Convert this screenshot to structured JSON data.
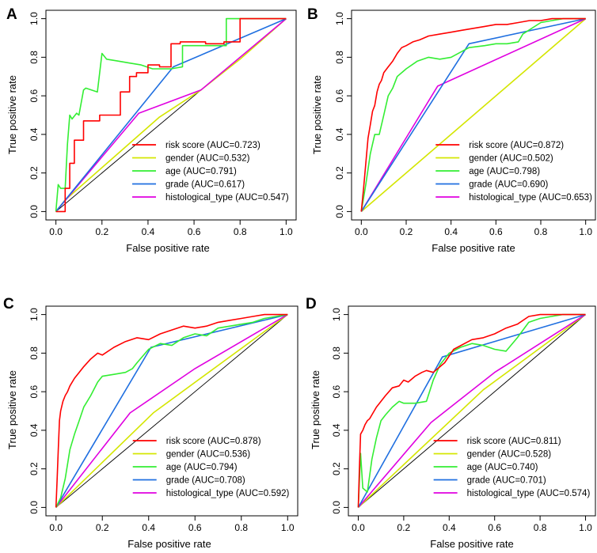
{
  "figure": {
    "axis_color": "#000000",
    "diagonal_color": "#000000"
  },
  "chart_data": [
    {
      "panel_label": "A",
      "type": "line",
      "xlabel": "False positive rate",
      "ylabel": "True positive rate",
      "xlim": [
        0,
        1
      ],
      "ylim": [
        0,
        1
      ],
      "ticks": [
        "0.0",
        "0.2",
        "0.4",
        "0.6",
        "0.8",
        "1.0"
      ],
      "legend_position": "bottom-right",
      "series": [
        {
          "name": "risk score (AUC=0.723)",
          "color": "#ff0000",
          "x": [
            0,
            0.04,
            0.04,
            0.06,
            0.06,
            0.08,
            0.08,
            0.12,
            0.12,
            0.19,
            0.19,
            0.28,
            0.28,
            0.32,
            0.32,
            0.35,
            0.35,
            0.4,
            0.4,
            0.45,
            0.45,
            0.5,
            0.5,
            0.54,
            0.54,
            0.6,
            0.6,
            0.65,
            0.65,
            0.73,
            0.73,
            0.8,
            0.8,
            0.85,
            0.85,
            0.95,
            1.0
          ],
          "y": [
            0,
            0,
            0.12,
            0.12,
            0.25,
            0.25,
            0.37,
            0.37,
            0.47,
            0.47,
            0.5,
            0.5,
            0.62,
            0.62,
            0.7,
            0.7,
            0.72,
            0.72,
            0.76,
            0.76,
            0.75,
            0.75,
            0.87,
            0.87,
            0.88,
            0.88,
            0.88,
            0.88,
            0.87,
            0.87,
            0.88,
            0.88,
            1.0,
            1.0,
            1.0,
            1.0,
            1.0
          ]
        },
        {
          "name": "gender (AUC=0.532)",
          "color": "#d4e600",
          "x": [
            0,
            0.04,
            0.25,
            0.45,
            0.63,
            0.8,
            1.0
          ],
          "y": [
            0,
            0.06,
            0.28,
            0.49,
            0.63,
            0.79,
            1.0
          ]
        },
        {
          "name": "age (AUC=0.791)",
          "color": "#33ee33",
          "x": [
            0,
            0.01,
            0.02,
            0.04,
            0.05,
            0.06,
            0.07,
            0.09,
            0.1,
            0.12,
            0.13,
            0.18,
            0.2,
            0.22,
            0.27,
            0.32,
            0.37,
            0.42,
            0.5,
            0.55,
            0.55,
            0.62,
            0.7,
            0.74,
            0.74,
            0.8,
            0.85,
            0.9,
            1.0
          ],
          "y": [
            0,
            0.14,
            0.12,
            0.12,
            0.35,
            0.5,
            0.48,
            0.51,
            0.5,
            0.63,
            0.64,
            0.62,
            0.82,
            0.79,
            0.78,
            0.77,
            0.76,
            0.74,
            0.74,
            0.75,
            0.86,
            0.86,
            0.86,
            0.86,
            1.0,
            1.0,
            1.0,
            1.0,
            1.0
          ]
        },
        {
          "name": "grade (AUC=0.617)",
          "color": "#1f6fe0",
          "x": [
            0,
            0.51,
            1.0
          ],
          "y": [
            0,
            0.75,
            1.0
          ]
        },
        {
          "name": "histological_type (AUC=0.547)",
          "color": "#e000e0",
          "x": [
            0,
            0.36,
            0.63,
            1.0
          ],
          "y": [
            0,
            0.51,
            0.63,
            1.0
          ]
        }
      ]
    },
    {
      "panel_label": "B",
      "type": "line",
      "xlabel": "False positive rate",
      "ylabel": "True positive rate",
      "xlim": [
        0,
        1
      ],
      "ylim": [
        0,
        1
      ],
      "ticks": [
        "0.0",
        "0.2",
        "0.4",
        "0.6",
        "0.8",
        "1.0"
      ],
      "legend_position": "bottom-right",
      "series": [
        {
          "name": "risk score (AUC=0.872)",
          "color": "#ff0000",
          "x": [
            0,
            0.01,
            0.02,
            0.03,
            0.04,
            0.05,
            0.06,
            0.07,
            0.08,
            0.09,
            0.1,
            0.12,
            0.14,
            0.16,
            0.18,
            0.2,
            0.23,
            0.26,
            0.3,
            0.35,
            0.4,
            0.45,
            0.5,
            0.55,
            0.6,
            0.65,
            0.7,
            0.75,
            0.8,
            0.85,
            0.9,
            0.95,
            1.0
          ],
          "y": [
            0,
            0.12,
            0.25,
            0.38,
            0.45,
            0.52,
            0.55,
            0.62,
            0.66,
            0.68,
            0.72,
            0.75,
            0.78,
            0.82,
            0.85,
            0.86,
            0.88,
            0.89,
            0.91,
            0.92,
            0.93,
            0.94,
            0.95,
            0.96,
            0.97,
            0.97,
            0.98,
            0.99,
            0.99,
            1.0,
            1.0,
            1.0,
            1.0
          ]
        },
        {
          "name": "gender (AUC=0.502)",
          "color": "#d4e600",
          "x": [
            0,
            1.0
          ],
          "y": [
            0,
            1.0
          ]
        },
        {
          "name": "age (AUC=0.798)",
          "color": "#33ee33",
          "x": [
            0,
            0.02,
            0.04,
            0.06,
            0.08,
            0.1,
            0.12,
            0.14,
            0.16,
            0.2,
            0.25,
            0.3,
            0.35,
            0.4,
            0.48,
            0.55,
            0.6,
            0.65,
            0.7,
            0.72,
            0.8,
            0.85,
            0.9,
            1.0
          ],
          "y": [
            0,
            0.14,
            0.3,
            0.4,
            0.4,
            0.5,
            0.6,
            0.64,
            0.7,
            0.74,
            0.78,
            0.8,
            0.79,
            0.8,
            0.85,
            0.86,
            0.87,
            0.87,
            0.88,
            0.92,
            0.98,
            0.99,
            1.0,
            1.0
          ]
        },
        {
          "name": "grade (AUC=0.690)",
          "color": "#1f6fe0",
          "x": [
            0,
            0.48,
            1.0
          ],
          "y": [
            0,
            0.87,
            1.0
          ]
        },
        {
          "name": "histological_type (AUC=0.653)",
          "color": "#e000e0",
          "x": [
            0,
            0.34,
            1.0
          ],
          "y": [
            0,
            0.65,
            1.0
          ]
        }
      ]
    },
    {
      "panel_label": "C",
      "type": "line",
      "xlabel": "False positive rate",
      "ylabel": "True positive rate",
      "xlim": [
        0,
        1
      ],
      "ylim": [
        0,
        1
      ],
      "ticks": [
        "0.0",
        "0.2",
        "0.4",
        "0.6",
        "0.8",
        "1.0"
      ],
      "legend_position": "bottom-right",
      "series": [
        {
          "name": "risk score (AUC=0.878)",
          "color": "#ff0000",
          "x": [
            0,
            0.005,
            0.01,
            0.015,
            0.02,
            0.03,
            0.04,
            0.05,
            0.06,
            0.08,
            0.1,
            0.12,
            0.15,
            0.18,
            0.2,
            0.25,
            0.3,
            0.35,
            0.4,
            0.45,
            0.5,
            0.55,
            0.6,
            0.65,
            0.7,
            0.75,
            0.8,
            0.85,
            0.9,
            0.95,
            1.0
          ],
          "y": [
            0,
            0.15,
            0.3,
            0.45,
            0.5,
            0.55,
            0.58,
            0.6,
            0.63,
            0.67,
            0.7,
            0.73,
            0.77,
            0.8,
            0.79,
            0.83,
            0.86,
            0.88,
            0.87,
            0.9,
            0.92,
            0.94,
            0.93,
            0.94,
            0.96,
            0.97,
            0.98,
            0.99,
            1.0,
            1.0,
            1.0
          ]
        },
        {
          "name": "gender (AUC=0.536)",
          "color": "#d4e600",
          "x": [
            0,
            0.42,
            1.0
          ],
          "y": [
            0,
            0.49,
            1.0
          ]
        },
        {
          "name": "age (AUC=0.794)",
          "color": "#33ee33",
          "x": [
            0,
            0.02,
            0.04,
            0.06,
            0.08,
            0.1,
            0.12,
            0.15,
            0.18,
            0.2,
            0.25,
            0.3,
            0.33,
            0.35,
            0.4,
            0.45,
            0.5,
            0.55,
            0.6,
            0.65,
            0.7,
            0.8,
            0.85,
            0.9,
            0.95,
            1.0
          ],
          "y": [
            0,
            0.05,
            0.15,
            0.3,
            0.38,
            0.45,
            0.52,
            0.58,
            0.65,
            0.68,
            0.69,
            0.7,
            0.72,
            0.75,
            0.82,
            0.85,
            0.84,
            0.88,
            0.9,
            0.89,
            0.93,
            0.95,
            0.96,
            0.98,
            0.99,
            1.0
          ]
        },
        {
          "name": "grade (AUC=0.708)",
          "color": "#1f6fe0",
          "x": [
            0,
            0.41,
            1.0
          ],
          "y": [
            0,
            0.83,
            1.0
          ]
        },
        {
          "name": "histological_type (AUC=0.592)",
          "color": "#e000e0",
          "x": [
            0,
            0.32,
            0.6,
            1.0
          ],
          "y": [
            0,
            0.49,
            0.72,
            1.0
          ]
        }
      ]
    },
    {
      "panel_label": "D",
      "type": "line",
      "xlabel": "False positive rate",
      "ylabel": "True positive rate",
      "xlim": [
        0,
        1
      ],
      "ylim": [
        0,
        1
      ],
      "ticks": [
        "0.0",
        "0.2",
        "0.4",
        "0.6",
        "0.8",
        "1.0"
      ],
      "legend_position": "bottom-right",
      "series": [
        {
          "name": "risk score (AUC=0.811)",
          "color": "#ff0000",
          "x": [
            0,
            0.005,
            0.01,
            0.02,
            0.03,
            0.04,
            0.05,
            0.06,
            0.08,
            0.1,
            0.12,
            0.15,
            0.18,
            0.2,
            0.22,
            0.25,
            0.28,
            0.3,
            0.33,
            0.35,
            0.38,
            0.42,
            0.5,
            0.55,
            0.6,
            0.65,
            0.7,
            0.75,
            0.8,
            0.85,
            0.9,
            0.95,
            1.0
          ],
          "y": [
            0,
            0.2,
            0.38,
            0.4,
            0.43,
            0.45,
            0.46,
            0.48,
            0.52,
            0.55,
            0.58,
            0.62,
            0.63,
            0.66,
            0.65,
            0.68,
            0.7,
            0.71,
            0.7,
            0.72,
            0.75,
            0.82,
            0.87,
            0.88,
            0.9,
            0.93,
            0.95,
            0.99,
            1.0,
            1.0,
            1.0,
            1.0,
            1.0
          ]
        },
        {
          "name": "gender (AUC=0.528)",
          "color": "#d4e600",
          "x": [
            0,
            0.55,
            1.0
          ],
          "y": [
            0,
            0.61,
            1.0
          ]
        },
        {
          "name": "age (AUC=0.740)",
          "color": "#33ee33",
          "x": [
            0,
            0.01,
            0.02,
            0.04,
            0.06,
            0.08,
            0.1,
            0.12,
            0.15,
            0.18,
            0.2,
            0.25,
            0.3,
            0.33,
            0.36,
            0.4,
            0.45,
            0.5,
            0.55,
            0.6,
            0.65,
            0.7,
            0.75,
            0.8,
            0.85,
            0.9,
            1.0
          ],
          "y": [
            0,
            0.28,
            0.1,
            0.08,
            0.25,
            0.36,
            0.45,
            0.48,
            0.52,
            0.55,
            0.54,
            0.54,
            0.55,
            0.66,
            0.74,
            0.8,
            0.83,
            0.85,
            0.84,
            0.82,
            0.81,
            0.88,
            0.96,
            0.98,
            0.99,
            1.0,
            1.0
          ]
        },
        {
          "name": "grade (AUC=0.701)",
          "color": "#1f6fe0",
          "x": [
            0,
            0.37,
            1.0
          ],
          "y": [
            0,
            0.78,
            1.0
          ]
        },
        {
          "name": "histological_type (AUC=0.574)",
          "color": "#e000e0",
          "x": [
            0,
            0.32,
            0.6,
            1.0
          ],
          "y": [
            0,
            0.44,
            0.7,
            1.0
          ]
        }
      ]
    }
  ]
}
